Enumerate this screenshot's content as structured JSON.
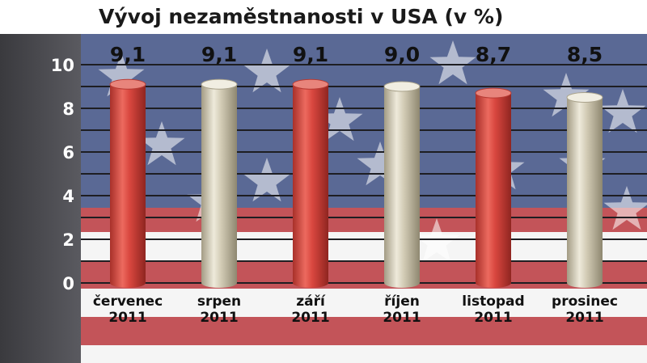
{
  "chart_data": {
    "type": "bar",
    "title": "Vývoj nezaměstnanosti v USA (v %)",
    "categories": [
      [
        "červenec",
        "2011"
      ],
      [
        "srpen",
        "2011"
      ],
      [
        "září",
        "2011"
      ],
      [
        "říjen",
        "2011"
      ],
      [
        "listopad",
        "2011"
      ],
      [
        "prosinec",
        "2011"
      ]
    ],
    "values": [
      9.1,
      9.1,
      9.1,
      9.0,
      8.7,
      8.5
    ],
    "value_labels": [
      "9,1",
      "9,1",
      "9,1",
      "9,0",
      "8,7",
      "8,5"
    ],
    "xlabel": "",
    "ylabel": "",
    "ylim": [
      0,
      10
    ],
    "yticks": [
      0,
      2,
      4,
      6,
      8,
      10
    ],
    "grid": true,
    "legend": "none",
    "bar_colors": [
      "#d9473f",
      "#cfc8b3",
      "#d9473f",
      "#cfc8b3",
      "#d9473f",
      "#cfc8b3"
    ]
  },
  "colors": {
    "stripe_red": "#b3252b",
    "stripe_white": "#f2f2f2",
    "canton_blue": "#2c3f78",
    "panel": "#505055",
    "grid": "#1e1e22"
  }
}
